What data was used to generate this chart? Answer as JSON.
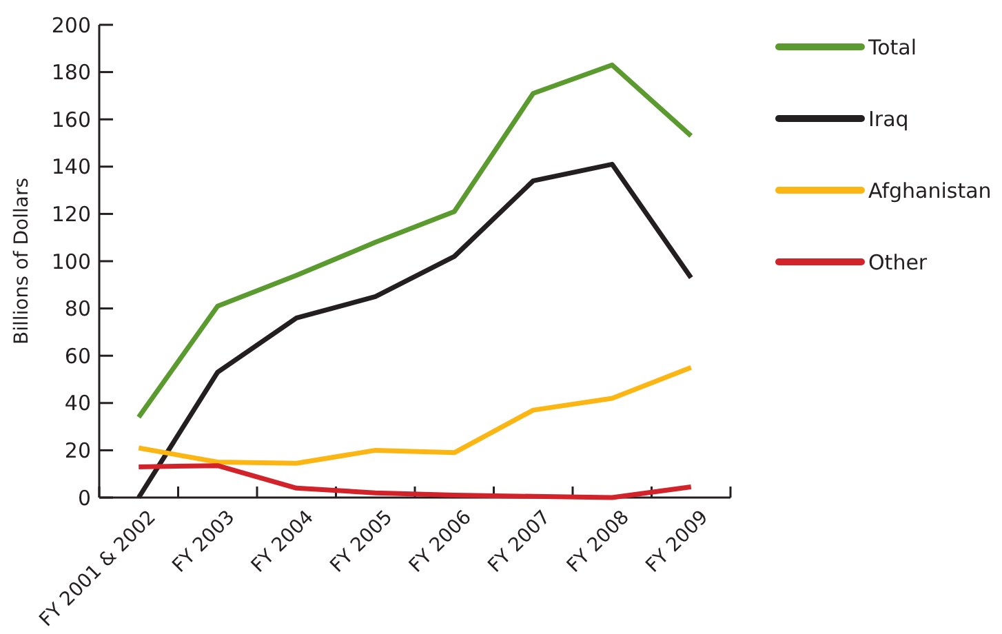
{
  "chart_data": {
    "type": "line",
    "ylabel": "Billions of Dollars",
    "categories": [
      "FY 2001 & 2002",
      "FY 2003",
      "FY 2004",
      "FY 2005",
      "FY 2006",
      "FY 2007",
      "FY 2008",
      "FY 2009"
    ],
    "series": [
      {
        "name": "Total",
        "color": "#5a9a2e",
        "values": [
          34,
          81,
          94,
          108,
          121,
          171,
          183,
          153
        ]
      },
      {
        "name": "Iraq",
        "color": "#231f20",
        "values": [
          0,
          53,
          76,
          85,
          102,
          134,
          141,
          93
        ]
      },
      {
        "name": "Afghanistan",
        "color": "#fcb614",
        "values": [
          21,
          15,
          14.5,
          20,
          19,
          37,
          42,
          55
        ]
      },
      {
        "name": "Other",
        "color": "#d2232a",
        "values": [
          13,
          13.5,
          4,
          2,
          1,
          0.5,
          0,
          4.5
        ]
      }
    ],
    "ylim": [
      0,
      200
    ],
    "yticks": [
      0,
      20,
      40,
      60,
      80,
      100,
      120,
      140,
      160,
      180,
      200
    ],
    "grid": false,
    "legend": "right",
    "marker": "none",
    "line_style": "solid"
  }
}
